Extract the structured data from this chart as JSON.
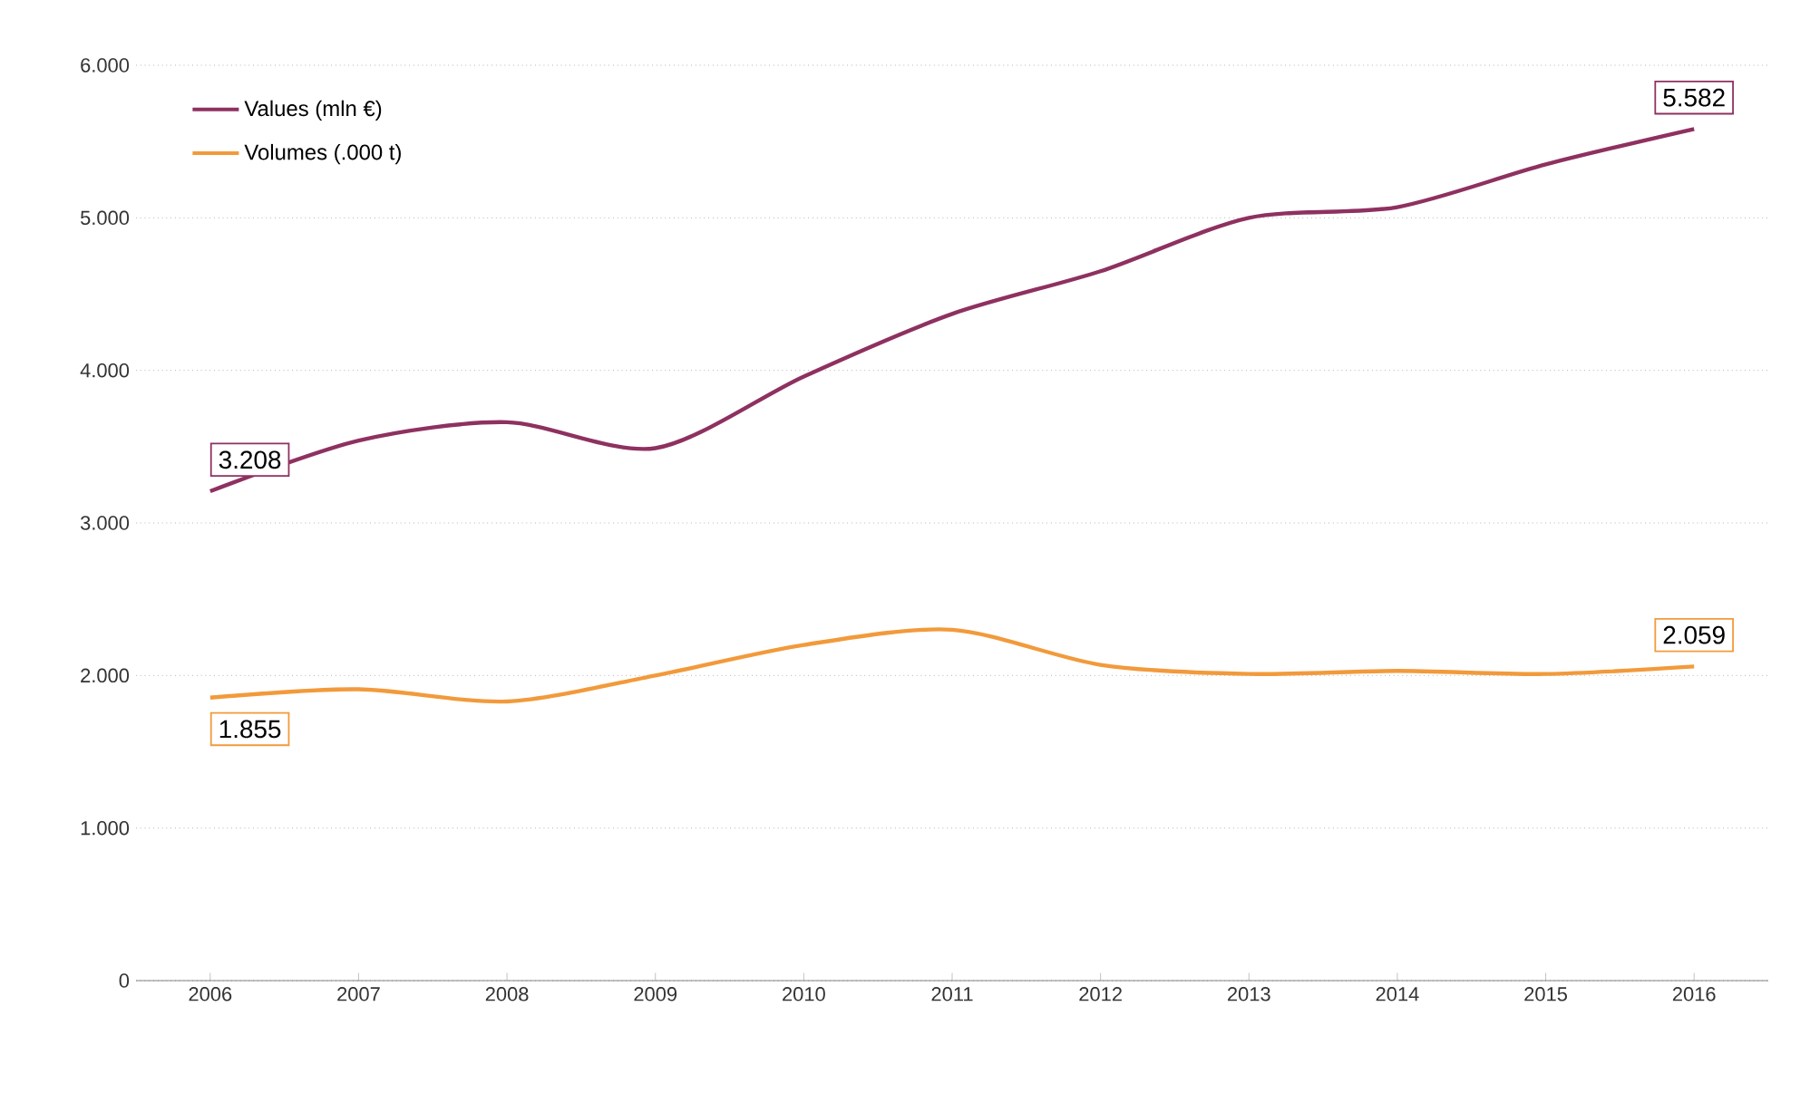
{
  "chart_data": {
    "type": "line",
    "categories": [
      "2006",
      "2007",
      "2008",
      "2009",
      "2010",
      "2011",
      "2012",
      "2013",
      "2014",
      "2015",
      "2016"
    ],
    "series": [
      {
        "name": "Values (mln €)",
        "color": "#8e3160",
        "values": [
          3208,
          3540,
          3660,
          3490,
          3960,
          4370,
          4650,
          5000,
          5070,
          5350,
          5582
        ],
        "value_labels": [
          "3.208",
          null,
          null,
          null,
          null,
          null,
          null,
          null,
          null,
          null,
          "5.582"
        ]
      },
      {
        "name": "Volumes (.000 t)",
        "color": "#f29a3b",
        "values": [
          1855,
          1910,
          1830,
          2000,
          2200,
          2300,
          2070,
          2010,
          2030,
          2010,
          2059
        ],
        "value_labels": [
          "1.855",
          null,
          null,
          null,
          null,
          null,
          null,
          null,
          null,
          null,
          "2.059"
        ]
      }
    ],
    "ylim": [
      0,
      6000
    ],
    "yticks": [
      0,
      {
        "value": 1000,
        "label": "1.000"
      },
      {
        "value": 2000,
        "label": "2.000"
      },
      {
        "value": 3000,
        "label": "3.000"
      },
      {
        "value": 4000,
        "label": "4.000"
      },
      {
        "value": 5000,
        "label": "5.000"
      },
      {
        "value": 6000,
        "label": "6.000"
      }
    ],
    "grid": "y",
    "legend": "top left",
    "marker": "none",
    "line_style": "solid"
  }
}
